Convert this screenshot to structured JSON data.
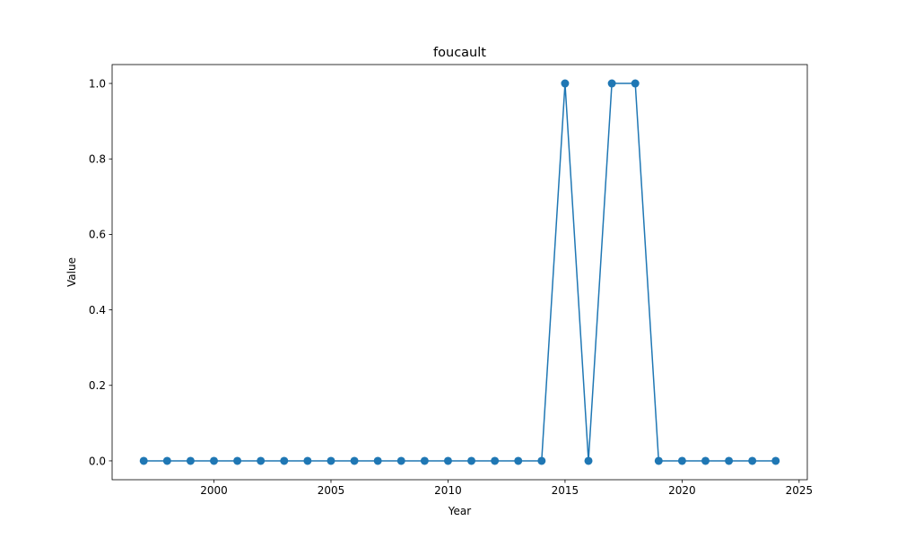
{
  "chart_data": {
    "type": "line",
    "title": "foucault",
    "xlabel": "Year",
    "ylabel": "Value",
    "xlim": [
      1995.65,
      2025.35
    ],
    "ylim": [
      -0.05,
      1.05
    ],
    "xticks": [
      2000,
      2005,
      2010,
      2015,
      2020,
      2025
    ],
    "yticks": [
      0.0,
      0.2,
      0.4,
      0.6,
      0.8,
      1.0
    ],
    "xtick_labels": [
      "2000",
      "2005",
      "2010",
      "2015",
      "2020",
      "2025"
    ],
    "ytick_labels": [
      "0.0",
      "0.2",
      "0.4",
      "0.6",
      "0.8",
      "1.0"
    ],
    "grid": false,
    "series": [
      {
        "color": "#1f77b4",
        "marker": "circle",
        "x": [
          1997,
          1998,
          1999,
          2000,
          2001,
          2002,
          2003,
          2004,
          2005,
          2006,
          2007,
          2008,
          2009,
          2010,
          2011,
          2012,
          2013,
          2014,
          2015,
          2016,
          2017,
          2018,
          2019,
          2020,
          2021,
          2022,
          2023,
          2024
        ],
        "y": [
          0,
          0,
          0,
          0,
          0,
          0,
          0,
          0,
          0,
          0,
          0,
          0,
          0,
          0,
          0,
          0,
          0,
          0,
          1,
          0,
          1,
          1,
          0,
          0,
          0,
          0,
          0,
          0
        ]
      }
    ]
  }
}
